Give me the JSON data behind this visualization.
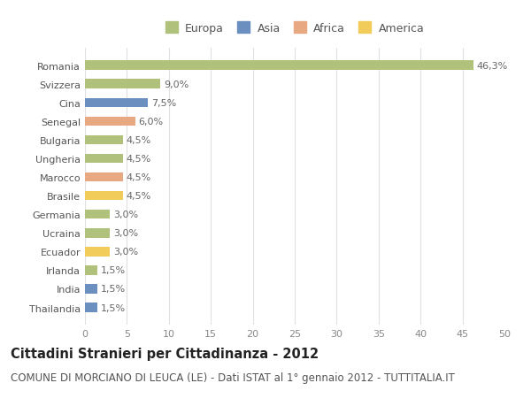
{
  "categories": [
    "Thailandia",
    "India",
    "Irlanda",
    "Ecuador",
    "Ucraina",
    "Germania",
    "Brasile",
    "Marocco",
    "Ungheria",
    "Bulgaria",
    "Senegal",
    "Cina",
    "Svizzera",
    "Romania"
  ],
  "values": [
    1.5,
    1.5,
    1.5,
    3.0,
    3.0,
    3.0,
    4.5,
    4.5,
    4.5,
    4.5,
    6.0,
    7.5,
    9.0,
    46.3
  ],
  "colors": [
    "#6b8fbe",
    "#6b8fbe",
    "#afc17a",
    "#f2cc5a",
    "#afc17a",
    "#afc17a",
    "#f2cc5a",
    "#e8a882",
    "#afc17a",
    "#afc17a",
    "#e8a882",
    "#6b8fbe",
    "#afc17a",
    "#afc17a"
  ],
  "labels": [
    "1,5%",
    "1,5%",
    "1,5%",
    "3,0%",
    "3,0%",
    "3,0%",
    "4,5%",
    "4,5%",
    "4,5%",
    "4,5%",
    "6,0%",
    "7,5%",
    "9,0%",
    "46,3%"
  ],
  "legend_labels": [
    "Europa",
    "Asia",
    "Africa",
    "America"
  ],
  "legend_colors": [
    "#afc17a",
    "#6b8fbe",
    "#e8a882",
    "#f2cc5a"
  ],
  "title": "Cittadini Stranieri per Cittadinanza - 2012",
  "subtitle": "COMUNE DI MORCIANO DI LEUCA (LE) - Dati ISTAT al 1° gennaio 2012 - TUTTITALIA.IT",
  "xlim": [
    0,
    50
  ],
  "xticks": [
    0,
    5,
    10,
    15,
    20,
    25,
    30,
    35,
    40,
    45,
    50
  ],
  "background_color": "#ffffff",
  "grid_color": "#e0e0e0",
  "bar_height": 0.5,
  "title_fontsize": 10.5,
  "subtitle_fontsize": 8.5,
  "label_fontsize": 8,
  "tick_fontsize": 8,
  "legend_fontsize": 9
}
